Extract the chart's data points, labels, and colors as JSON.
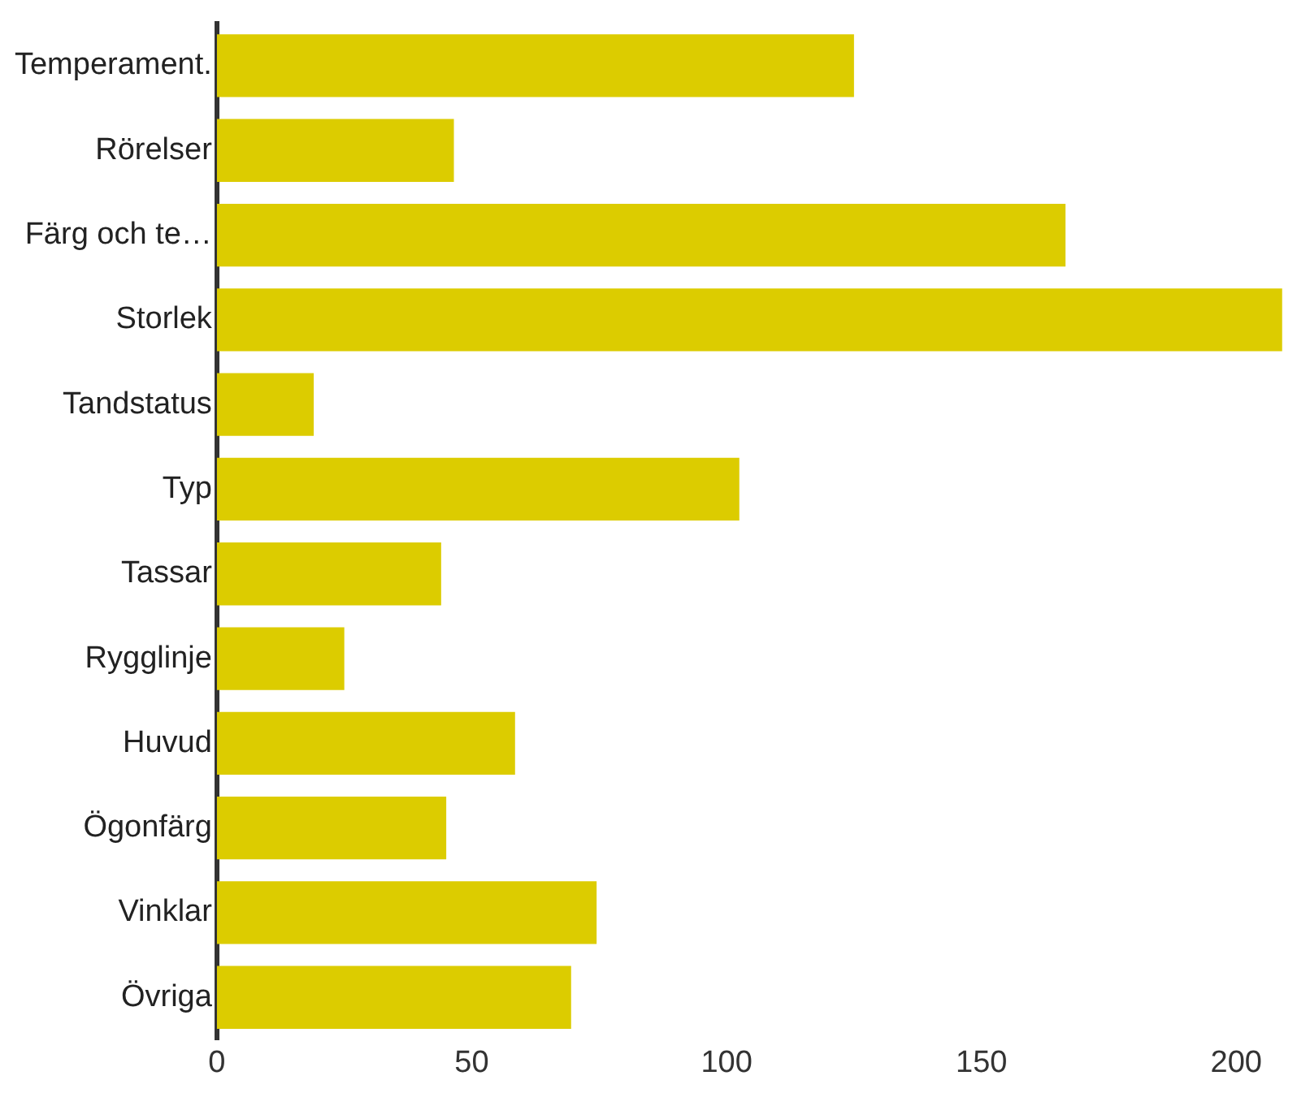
{
  "chart_data": {
    "type": "bar",
    "orientation": "horizontal",
    "categories": [
      "Temperament.",
      "Rörelser",
      "Färg och te…",
      "Storlek",
      "Tandstatus",
      "Typ",
      "Tassar",
      "Rygglinje",
      "Huvud",
      "Ögonfärg",
      "Vinklar",
      "Övriga"
    ],
    "values": [
      125,
      46.5,
      166.5,
      209,
      19,
      102.5,
      44,
      25,
      58.5,
      45,
      74.5,
      69.5
    ],
    "color": "#dccc00",
    "xlim": [
      0,
      210
    ],
    "xticks": [
      0,
      50,
      100,
      150,
      200
    ],
    "grid": false,
    "legend": false
  }
}
